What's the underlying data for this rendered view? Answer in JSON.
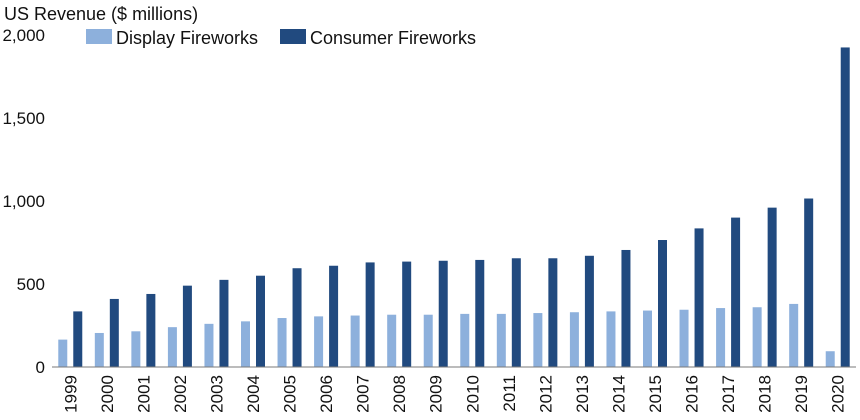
{
  "chart_data": {
    "type": "bar",
    "title": "",
    "ylabel": "US Revenue ($ millions)",
    "xlabel": "",
    "ylim": [
      0,
      2000
    ],
    "yticks": [
      0,
      500,
      1000,
      1500,
      2000
    ],
    "ytick_labels": [
      "0",
      "500",
      "1,000",
      "1,500",
      "2,000"
    ],
    "grid": false,
    "legend_position": "top-left",
    "categories": [
      "1999",
      "2000",
      "2001",
      "2002",
      "2003",
      "2004",
      "2005",
      "2006",
      "2007",
      "2008",
      "2009",
      "2010",
      "2011",
      "2012",
      "2013",
      "2014",
      "2015",
      "2016",
      "2017",
      "2018",
      "2019",
      "2020"
    ],
    "series": [
      {
        "name": "Display Fireworks",
        "color": "#8db0dc",
        "values": [
          165,
          205,
          215,
          240,
          260,
          275,
          295,
          305,
          310,
          315,
          315,
          320,
          320,
          325,
          330,
          335,
          340,
          345,
          355,
          360,
          380,
          95
        ]
      },
      {
        "name": "Consumer Fireworks",
        "color": "#214a7f",
        "values": [
          335,
          410,
          440,
          490,
          525,
          550,
          595,
          610,
          630,
          635,
          640,
          645,
          655,
          655,
          670,
          705,
          765,
          835,
          900,
          960,
          1015,
          1925
        ]
      }
    ]
  }
}
